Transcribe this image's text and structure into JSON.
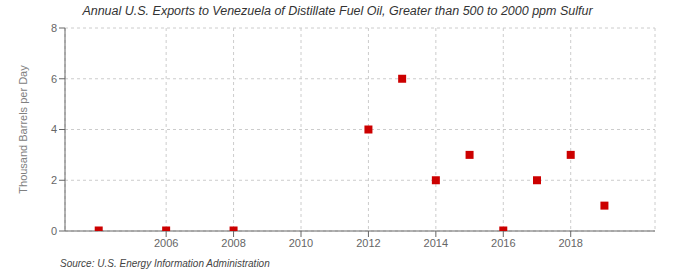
{
  "chart_data": {
    "type": "scatter",
    "title": "Annual U.S. Exports to Venezuela of Distillate Fuel Oil, Greater than 500 to 2000 ppm Sulfur",
    "ylabel": "Thousand Barrels per Day",
    "annotations": [
      "Source: U.S. Energy Information Administration"
    ],
    "x": [
      2004,
      2006,
      2008,
      2012,
      2013,
      2014,
      2015,
      2016,
      2017,
      2018,
      2019
    ],
    "values": [
      0.02,
      0.02,
      0.02,
      4,
      6,
      2,
      3,
      0.02,
      2,
      3,
      1
    ],
    "color": "#cc0000",
    "marker": "square",
    "xlim": [
      2003,
      2020.5
    ],
    "ylim": [
      0,
      8
    ],
    "xticks": [
      2006,
      2008,
      2010,
      2012,
      2014,
      2016,
      2018
    ],
    "yticks": [
      0,
      2,
      4,
      6,
      8
    ],
    "grid": true
  }
}
